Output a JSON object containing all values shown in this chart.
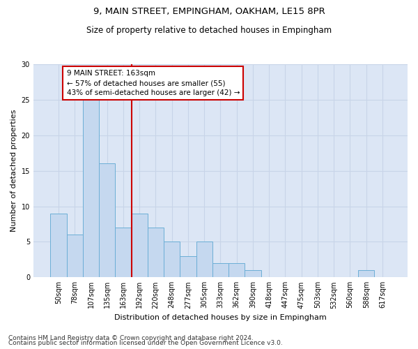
{
  "title1": "9, MAIN STREET, EMPINGHAM, OAKHAM, LE15 8PR",
  "title2": "Size of property relative to detached houses in Empingham",
  "xlabel": "Distribution of detached houses by size in Empingham",
  "ylabel": "Number of detached properties",
  "categories": [
    "50sqm",
    "78sqm",
    "107sqm",
    "135sqm",
    "163sqm",
    "192sqm",
    "220sqm",
    "248sqm",
    "277sqm",
    "305sqm",
    "333sqm",
    "362sqm",
    "390sqm",
    "418sqm",
    "447sqm",
    "475sqm",
    "503sqm",
    "532sqm",
    "560sqm",
    "588sqm",
    "617sqm"
  ],
  "values": [
    9,
    6,
    25,
    16,
    7,
    9,
    7,
    5,
    3,
    5,
    2,
    2,
    1,
    0,
    0,
    0,
    0,
    0,
    0,
    1,
    0
  ],
  "bar_color": "#c5d8ef",
  "bar_edge_color": "#6baed6",
  "marker_line_index": 4,
  "marker_line_color": "#cc0000",
  "annotation_text": "9 MAIN STREET: 163sqm\n← 57% of detached houses are smaller (55)\n43% of semi-detached houses are larger (42) →",
  "annotation_box_edge": "#cc0000",
  "annotation_fontsize": 7.5,
  "ylim": [
    0,
    30
  ],
  "yticks": [
    0,
    5,
    10,
    15,
    20,
    25,
    30
  ],
  "grid_color": "#c8d4e8",
  "bg_color": "#dce6f5",
  "footer1": "Contains HM Land Registry data © Crown copyright and database right 2024.",
  "footer2": "Contains public sector information licensed under the Open Government Licence v3.0.",
  "title_fontsize": 9.5,
  "subtitle_fontsize": 8.5,
  "xlabel_fontsize": 8,
  "ylabel_fontsize": 8,
  "tick_fontsize": 7,
  "footer_fontsize": 6.5
}
